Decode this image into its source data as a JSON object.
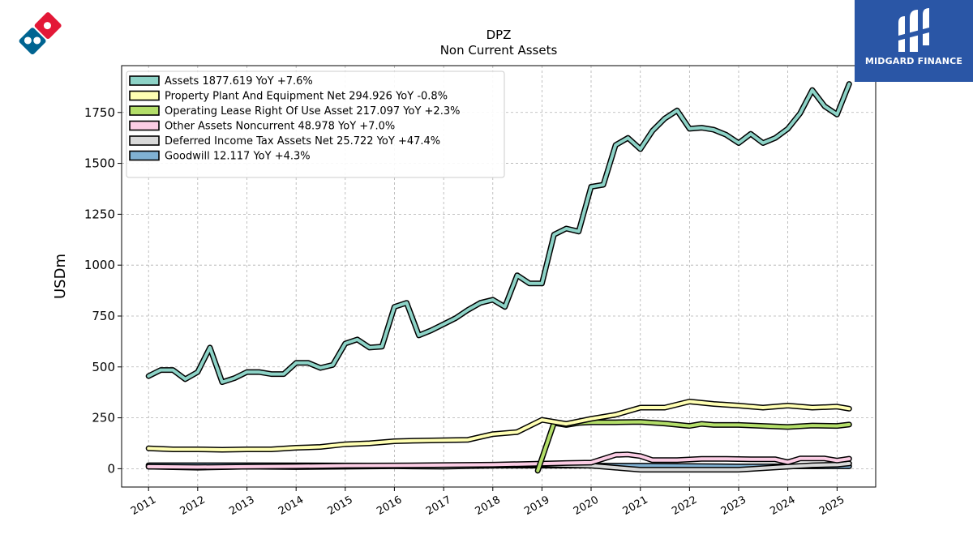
{
  "brand": {
    "name": "MIDGARD FINANCE"
  },
  "logo": {
    "name": "dominos-logo"
  },
  "chart_data": {
    "type": "line",
    "title": "DPZ",
    "subtitle": "Non Current  Assets",
    "ylabel": "USDm",
    "xlabel": "",
    "xlim": [
      "2010-06-15",
      "2025-10-15"
    ],
    "ylim": [
      -90,
      1980
    ],
    "yticks": [
      0,
      250,
      500,
      750,
      1000,
      1250,
      1500,
      1750
    ],
    "xticks": [
      "2011",
      "2012",
      "2013",
      "2014",
      "2015",
      "2016",
      "2017",
      "2018",
      "2019",
      "2020",
      "2021",
      "2022",
      "2023",
      "2024",
      "2025"
    ],
    "grid": true,
    "legend_position": "top-left",
    "series": [
      {
        "name": "Assets",
        "label": "Assets  1877.619 YoY +7.6%",
        "color": "#8dd3c7",
        "points": [
          [
            "2011-01",
            455
          ],
          [
            "2011-04",
            485
          ],
          [
            "2011-07",
            485
          ],
          [
            "2011-10",
            440
          ],
          [
            "2012-01",
            475
          ],
          [
            "2012-04",
            595
          ],
          [
            "2012-07",
            425
          ],
          [
            "2012-10",
            445
          ],
          [
            "2013-01",
            475
          ],
          [
            "2013-04",
            475
          ],
          [
            "2013-07",
            465
          ],
          [
            "2013-10",
            465
          ],
          [
            "2014-01",
            520
          ],
          [
            "2014-04",
            520
          ],
          [
            "2014-07",
            495
          ],
          [
            "2014-10",
            510
          ],
          [
            "2015-01",
            615
          ],
          [
            "2015-04",
            635
          ],
          [
            "2015-07",
            595
          ],
          [
            "2015-10",
            600
          ],
          [
            "2016-01",
            795
          ],
          [
            "2016-04",
            815
          ],
          [
            "2016-07",
            655
          ],
          [
            "2016-10",
            680
          ],
          [
            "2017-01",
            710
          ],
          [
            "2017-04",
            740
          ],
          [
            "2017-07",
            780
          ],
          [
            "2017-10",
            815
          ],
          [
            "2018-01",
            830
          ],
          [
            "2018-04",
            795
          ],
          [
            "2018-07",
            950
          ],
          [
            "2018-10",
            910
          ],
          [
            "2019-01",
            910
          ],
          [
            "2019-04",
            1150
          ],
          [
            "2019-07",
            1180
          ],
          [
            "2019-10",
            1165
          ],
          [
            "2020-01",
            1385
          ],
          [
            "2020-04",
            1395
          ],
          [
            "2020-07",
            1590
          ],
          [
            "2020-10",
            1625
          ],
          [
            "2021-01",
            1570
          ],
          [
            "2021-04",
            1660
          ],
          [
            "2021-07",
            1720
          ],
          [
            "2021-10",
            1760
          ],
          [
            "2022-01",
            1670
          ],
          [
            "2022-04",
            1675
          ],
          [
            "2022-07",
            1665
          ],
          [
            "2022-10",
            1640
          ],
          [
            "2023-01",
            1600
          ],
          [
            "2023-04",
            1645
          ],
          [
            "2023-07",
            1600
          ],
          [
            "2023-10",
            1625
          ],
          [
            "2024-01",
            1670
          ],
          [
            "2024-04",
            1745
          ],
          [
            "2024-07",
            1860
          ],
          [
            "2024-10",
            1780
          ],
          [
            "2025-01",
            1740
          ],
          [
            "2025-04",
            1890
          ]
        ]
      },
      {
        "name": "Property Plant And Equipment Net",
        "label": "Property Plant And Equipment Net  294.926 YoY -0.8%",
        "color": "#ffffb3",
        "points": [
          [
            "2011-01",
            100
          ],
          [
            "2011-07",
            95
          ],
          [
            "2012-01",
            95
          ],
          [
            "2012-07",
            93
          ],
          [
            "2013-01",
            95
          ],
          [
            "2013-07",
            95
          ],
          [
            "2014-01",
            103
          ],
          [
            "2014-07",
            107
          ],
          [
            "2015-01",
            120
          ],
          [
            "2015-07",
            125
          ],
          [
            "2016-01",
            135
          ],
          [
            "2016-07",
            138
          ],
          [
            "2017-01",
            140
          ],
          [
            "2017-07",
            142
          ],
          [
            "2018-01",
            170
          ],
          [
            "2018-07",
            180
          ],
          [
            "2019-01",
            240
          ],
          [
            "2019-07",
            220
          ],
          [
            "2020-01",
            245
          ],
          [
            "2020-07",
            265
          ],
          [
            "2021-01",
            300
          ],
          [
            "2021-07",
            300
          ],
          [
            "2022-01",
            330
          ],
          [
            "2022-07",
            318
          ],
          [
            "2023-01",
            310
          ],
          [
            "2023-07",
            300
          ],
          [
            "2024-01",
            310
          ],
          [
            "2024-07",
            300
          ],
          [
            "2025-01",
            305
          ],
          [
            "2025-04",
            295
          ]
        ]
      },
      {
        "name": "Operating Lease Right Of Use Asset",
        "label": "Operating Lease Right Of Use Asset  217.097 YoY +2.3%",
        "color": "#b3de69",
        "points": [
          [
            "2018-12",
            -10
          ],
          [
            "2019-04",
            225
          ],
          [
            "2019-07",
            215
          ],
          [
            "2019-10",
            225
          ],
          [
            "2020-01",
            228
          ],
          [
            "2020-07",
            228
          ],
          [
            "2021-01",
            230
          ],
          [
            "2021-07",
            222
          ],
          [
            "2022-01",
            210
          ],
          [
            "2022-04",
            220
          ],
          [
            "2022-07",
            215
          ],
          [
            "2023-01",
            215
          ],
          [
            "2023-07",
            210
          ],
          [
            "2024-01",
            205
          ],
          [
            "2024-07",
            212
          ],
          [
            "2025-01",
            210
          ],
          [
            "2025-04",
            217
          ]
        ]
      },
      {
        "name": "Other Assets Noncurrent",
        "label": "Other Assets Noncurrent  48.978 YoY +7.0%",
        "color": "#fccde5",
        "points": [
          [
            "2011-01",
            10
          ],
          [
            "2012-01",
            8
          ],
          [
            "2013-01",
            10
          ],
          [
            "2014-01",
            12
          ],
          [
            "2015-01",
            15
          ],
          [
            "2016-01",
            16
          ],
          [
            "2017-01",
            18
          ],
          [
            "2018-01",
            20
          ],
          [
            "2019-01",
            25
          ],
          [
            "2019-07",
            28
          ],
          [
            "2020-01",
            30
          ],
          [
            "2020-07",
            68
          ],
          [
            "2020-10",
            70
          ],
          [
            "2021-01",
            62
          ],
          [
            "2021-04",
            42
          ],
          [
            "2021-10",
            42
          ],
          [
            "2022-04",
            48
          ],
          [
            "2022-10",
            48
          ],
          [
            "2023-04",
            46
          ],
          [
            "2023-10",
            46
          ],
          [
            "2024-01",
            32
          ],
          [
            "2024-04",
            50
          ],
          [
            "2024-10",
            50
          ],
          [
            "2025-01",
            40
          ],
          [
            "2025-04",
            49
          ]
        ]
      },
      {
        "name": "Deferred Income Tax Assets Net",
        "label": "Deferred Income Tax Assets Net  25.722 YoY +47.4%",
        "color": "#d9d9d9",
        "points": [
          [
            "2011-01",
            10
          ],
          [
            "2012-01",
            5
          ],
          [
            "2013-01",
            10
          ],
          [
            "2014-01",
            8
          ],
          [
            "2015-01",
            10
          ],
          [
            "2016-01",
            12
          ],
          [
            "2017-01",
            10
          ],
          [
            "2018-01",
            15
          ],
          [
            "2019-01",
            20
          ],
          [
            "2020-01",
            15
          ],
          [
            "2020-07",
            5
          ],
          [
            "2021-01",
            -5
          ],
          [
            "2022-01",
            -5
          ],
          [
            "2023-01",
            -5
          ],
          [
            "2024-01",
            10
          ],
          [
            "2024-07",
            17
          ],
          [
            "2025-01",
            20
          ],
          [
            "2025-04",
            26
          ]
        ]
      },
      {
        "name": "Goodwill",
        "label": "Goodwill  12.117 YoY +4.3%",
        "color": "#80b1d3",
        "points": [
          [
            "2011-01",
            17
          ],
          [
            "2013-01",
            17
          ],
          [
            "2015-01",
            16
          ],
          [
            "2017-01",
            15
          ],
          [
            "2019-01",
            15
          ],
          [
            "2021-01",
            15
          ],
          [
            "2023-01",
            11
          ],
          [
            "2025-01",
            12
          ],
          [
            "2025-04",
            12
          ]
        ]
      }
    ]
  }
}
